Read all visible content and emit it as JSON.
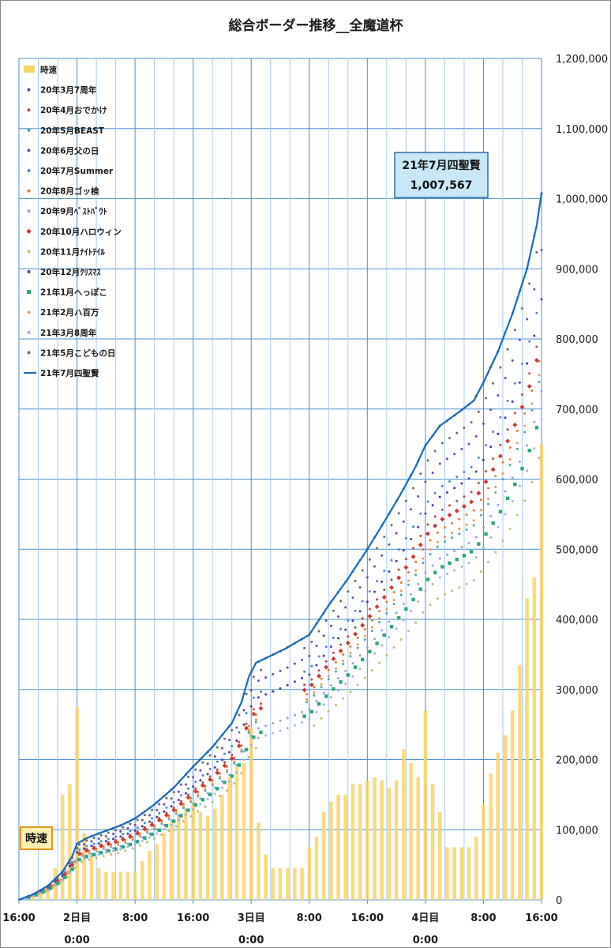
{
  "chart_data": {
    "type": "line",
    "title": "総合ボーダー推移__全魔道杯",
    "ylim": [
      0,
      1200000
    ],
    "y_ticks": [
      "0",
      "100,000",
      "200,000",
      "300,000",
      "400,000",
      "500,000",
      "600,000",
      "700,000",
      "800,000",
      "900,000",
      "1,000,000",
      "1,100,000",
      "1,200,000"
    ],
    "x_range_hours": [
      0,
      216
    ],
    "x_ticks": [
      {
        "hour": 0,
        "line1": "16:00",
        "line2": ""
      },
      {
        "hour": 24,
        "line1": "2日目",
        "line2": "0:00"
      },
      {
        "hour": 48,
        "line1": "8:00",
        "line2": ""
      },
      {
        "hour": 72,
        "line1": "16:00",
        "line2": ""
      },
      {
        "hour": 96,
        "line1": "3日目",
        "line2": "0:00"
      },
      {
        "hour": 120,
        "line1": "8:00",
        "line2": ""
      },
      {
        "hour": 144,
        "line1": "16:00",
        "line2": ""
      },
      {
        "hour": 168,
        "line1": "4日目",
        "line2": "0:00"
      },
      {
        "hour": 192,
        "line1": "8:00",
        "line2": ""
      },
      {
        "hour": 216,
        "line1": "16:00",
        "line2": ""
      }
    ],
    "callout": {
      "line1": "21年7月四聖賢",
      "line2": "1,007,567"
    },
    "speed_label": "時速",
    "legend": [
      {
        "name": "時速",
        "color": "#f7d36b",
        "marker": "bar"
      },
      {
        "name": "20年3月7周年",
        "color": "#4a4aa8",
        "marker": "dot"
      },
      {
        "name": "20年4月おでかけ",
        "color": "#b84a4a",
        "marker": "dot"
      },
      {
        "name": "20年5月BEAST",
        "color": "#4aa8a8",
        "marker": "dot"
      },
      {
        "name": "20年6月父の日",
        "color": "#6a4ab0",
        "marker": "dot"
      },
      {
        "name": "20年7月Summer",
        "color": "#4a8ac8",
        "marker": "dot"
      },
      {
        "name": "20年8月ゴッ検",
        "color": "#e07a2a",
        "marker": "dot"
      },
      {
        "name": "20年9月ﾍﾞｽﾄﾊﾞｳﾄ",
        "color": "#9aa0e0",
        "marker": "dot"
      },
      {
        "name": "20年10月ハロウィン",
        "color": "#c83a3a",
        "marker": "diamond"
      },
      {
        "name": "20年11月ﾅｲﾄﾃｲﾙ",
        "color": "#b8c070",
        "marker": "dot"
      },
      {
        "name": "20年12月ｸﾘｽﾏｽ",
        "color": "#4a3aa0",
        "marker": "dot"
      },
      {
        "name": "21年1月へっぽこ",
        "color": "#2aa878",
        "marker": "square"
      },
      {
        "name": "21年2月ハ百万",
        "color": "#e89a5a",
        "marker": "dot"
      },
      {
        "name": "21年3月8周年",
        "color": "#a8b0e0",
        "marker": "dot"
      },
      {
        "name": "21年5月こどもの日",
        "color": "#6a6a6a",
        "marker": "dot"
      },
      {
        "name": "21年7月四聖賢",
        "color": "#1a6ab8",
        "marker": "line"
      }
    ],
    "hourly_speed": [
      {
        "x": 6,
        "y": 5000
      },
      {
        "x": 9,
        "y": 10000
      },
      {
        "x": 12,
        "y": 20000
      },
      {
        "x": 15,
        "y": 45000
      },
      {
        "x": 18,
        "y": 150000
      },
      {
        "x": 21,
        "y": 165000
      },
      {
        "x": 24,
        "y": 275000
      },
      {
        "x": 27,
        "y": 95000
      },
      {
        "x": 30,
        "y": 65000
      },
      {
        "x": 33,
        "y": 45000
      },
      {
        "x": 36,
        "y": 40000
      },
      {
        "x": 39,
        "y": 40000
      },
      {
        "x": 42,
        "y": 40000
      },
      {
        "x": 45,
        "y": 40000
      },
      {
        "x": 48,
        "y": 40000
      },
      {
        "x": 51,
        "y": 55000
      },
      {
        "x": 54,
        "y": 70000
      },
      {
        "x": 57,
        "y": 80000
      },
      {
        "x": 60,
        "y": 95000
      },
      {
        "x": 63,
        "y": 110000
      },
      {
        "x": 66,
        "y": 120000
      },
      {
        "x": 69,
        "y": 130000
      },
      {
        "x": 72,
        "y": 140000
      },
      {
        "x": 75,
        "y": 125000
      },
      {
        "x": 78,
        "y": 120000
      },
      {
        "x": 81,
        "y": 130000
      },
      {
        "x": 84,
        "y": 150000
      },
      {
        "x": 87,
        "y": 175000
      },
      {
        "x": 90,
        "y": 190000
      },
      {
        "x": 93,
        "y": 195000
      },
      {
        "x": 96,
        "y": 245000
      },
      {
        "x": 99,
        "y": 110000
      },
      {
        "x": 102,
        "y": 65000
      },
      {
        "x": 105,
        "y": 45000
      },
      {
        "x": 108,
        "y": 45000
      },
      {
        "x": 111,
        "y": 45000
      },
      {
        "x": 114,
        "y": 45000
      },
      {
        "x": 117,
        "y": 45000
      },
      {
        "x": 120,
        "y": 75000
      },
      {
        "x": 123,
        "y": 90000
      },
      {
        "x": 126,
        "y": 125000
      },
      {
        "x": 129,
        "y": 140000
      },
      {
        "x": 132,
        "y": 150000
      },
      {
        "x": 135,
        "y": 150000
      },
      {
        "x": 138,
        "y": 165000
      },
      {
        "x": 141,
        "y": 165000
      },
      {
        "x": 144,
        "y": 170000
      },
      {
        "x": 147,
        "y": 175000
      },
      {
        "x": 150,
        "y": 170000
      },
      {
        "x": 153,
        "y": 160000
      },
      {
        "x": 156,
        "y": 170000
      },
      {
        "x": 159,
        "y": 215000
      },
      {
        "x": 162,
        "y": 195000
      },
      {
        "x": 165,
        "y": 175000
      },
      {
        "x": 168,
        "y": 270000
      },
      {
        "x": 171,
        "y": 165000
      },
      {
        "x": 174,
        "y": 125000
      },
      {
        "x": 177,
        "y": 75000
      },
      {
        "x": 180,
        "y": 75000
      },
      {
        "x": 183,
        "y": 75000
      },
      {
        "x": 186,
        "y": 75000
      },
      {
        "x": 189,
        "y": 90000
      },
      {
        "x": 192,
        "y": 135000
      },
      {
        "x": 195,
        "y": 180000
      },
      {
        "x": 198,
        "y": 210000
      },
      {
        "x": 201,
        "y": 235000
      },
      {
        "x": 204,
        "y": 270000
      },
      {
        "x": 207,
        "y": 335000
      },
      {
        "x": 210,
        "y": 430000
      },
      {
        "x": 213,
        "y": 460000
      },
      {
        "x": 216,
        "y": 650000
      }
    ],
    "main_series": {
      "name": "21年7月四聖賢",
      "points": [
        {
          "x": 0,
          "y": 0
        },
        {
          "x": 6,
          "y": 8000
        },
        {
          "x": 12,
          "y": 20000
        },
        {
          "x": 18,
          "y": 40000
        },
        {
          "x": 22,
          "y": 62000
        },
        {
          "x": 24,
          "y": 80000
        },
        {
          "x": 28,
          "y": 88000
        },
        {
          "x": 34,
          "y": 96000
        },
        {
          "x": 42,
          "y": 106000
        },
        {
          "x": 48,
          "y": 116000
        },
        {
          "x": 56,
          "y": 136000
        },
        {
          "x": 64,
          "y": 160000
        },
        {
          "x": 72,
          "y": 190000
        },
        {
          "x": 80,
          "y": 218000
        },
        {
          "x": 88,
          "y": 252000
        },
        {
          "x": 92,
          "y": 282000
        },
        {
          "x": 95,
          "y": 318000
        },
        {
          "x": 98,
          "y": 338000
        },
        {
          "x": 104,
          "y": 348000
        },
        {
          "x": 110,
          "y": 358000
        },
        {
          "x": 116,
          "y": 370000
        },
        {
          "x": 120,
          "y": 378000
        },
        {
          "x": 128,
          "y": 420000
        },
        {
          "x": 136,
          "y": 458000
        },
        {
          "x": 144,
          "y": 500000
        },
        {
          "x": 152,
          "y": 545000
        },
        {
          "x": 158,
          "y": 580000
        },
        {
          "x": 164,
          "y": 618000
        },
        {
          "x": 168,
          "y": 648000
        },
        {
          "x": 174,
          "y": 676000
        },
        {
          "x": 182,
          "y": 696000
        },
        {
          "x": 188,
          "y": 712000
        },
        {
          "x": 192,
          "y": 738000
        },
        {
          "x": 198,
          "y": 782000
        },
        {
          "x": 204,
          "y": 836000
        },
        {
          "x": 210,
          "y": 900000
        },
        {
          "x": 214,
          "y": 962000
        },
        {
          "x": 216,
          "y": 1007567
        }
      ]
    },
    "comparison_series": [
      {
        "color": "#4a4aa8",
        "scale": 1.0,
        "gap": 0,
        "off": 0,
        "marker": "dot"
      },
      {
        "color": "#b84a4a",
        "scale": 0.82,
        "gap": 0,
        "off": 1,
        "marker": "dot"
      },
      {
        "color": "#4aa8a8",
        "scale": 0.75,
        "gap": 0,
        "off": 2,
        "marker": "dot"
      },
      {
        "color": "#6a4ab0",
        "scale": 0.92,
        "gap": 0,
        "off": 0,
        "marker": "dot"
      },
      {
        "color": "#4a8ac8",
        "scale": 0.87,
        "gap": 0,
        "off": 1,
        "marker": "dot"
      },
      {
        "color": "#e07a2a",
        "scale": 0.78,
        "gap": 0,
        "off": 2,
        "marker": "dot"
      },
      {
        "color": "#9aa0e0",
        "scale": 0.72,
        "gap": 0,
        "off": 0,
        "marker": "dot"
      },
      {
        "color": "#c83a3a",
        "scale": 0.8,
        "gap": 0,
        "off": 1,
        "marker": "diamond"
      },
      {
        "color": "#b8c070",
        "scale": 0.64,
        "gap": 1,
        "off": 2,
        "marker": "dot"
      },
      {
        "color": "#4a3aa0",
        "scale": 0.85,
        "gap": 0,
        "off": 0,
        "marker": "dot"
      },
      {
        "color": "#2aa878",
        "scale": 0.7,
        "gap": 0,
        "off": 1,
        "marker": "square"
      },
      {
        "color": "#e89a5a",
        "scale": 0.76,
        "gap": 0,
        "off": 2,
        "marker": "dot"
      },
      {
        "color": "#a8b0e0",
        "scale": 0.68,
        "gap": 0,
        "off": 0,
        "marker": "dot"
      },
      {
        "color": "#6a6a6a",
        "scale": 0.96,
        "gap": 0,
        "off": 1,
        "marker": "dot"
      }
    ]
  }
}
